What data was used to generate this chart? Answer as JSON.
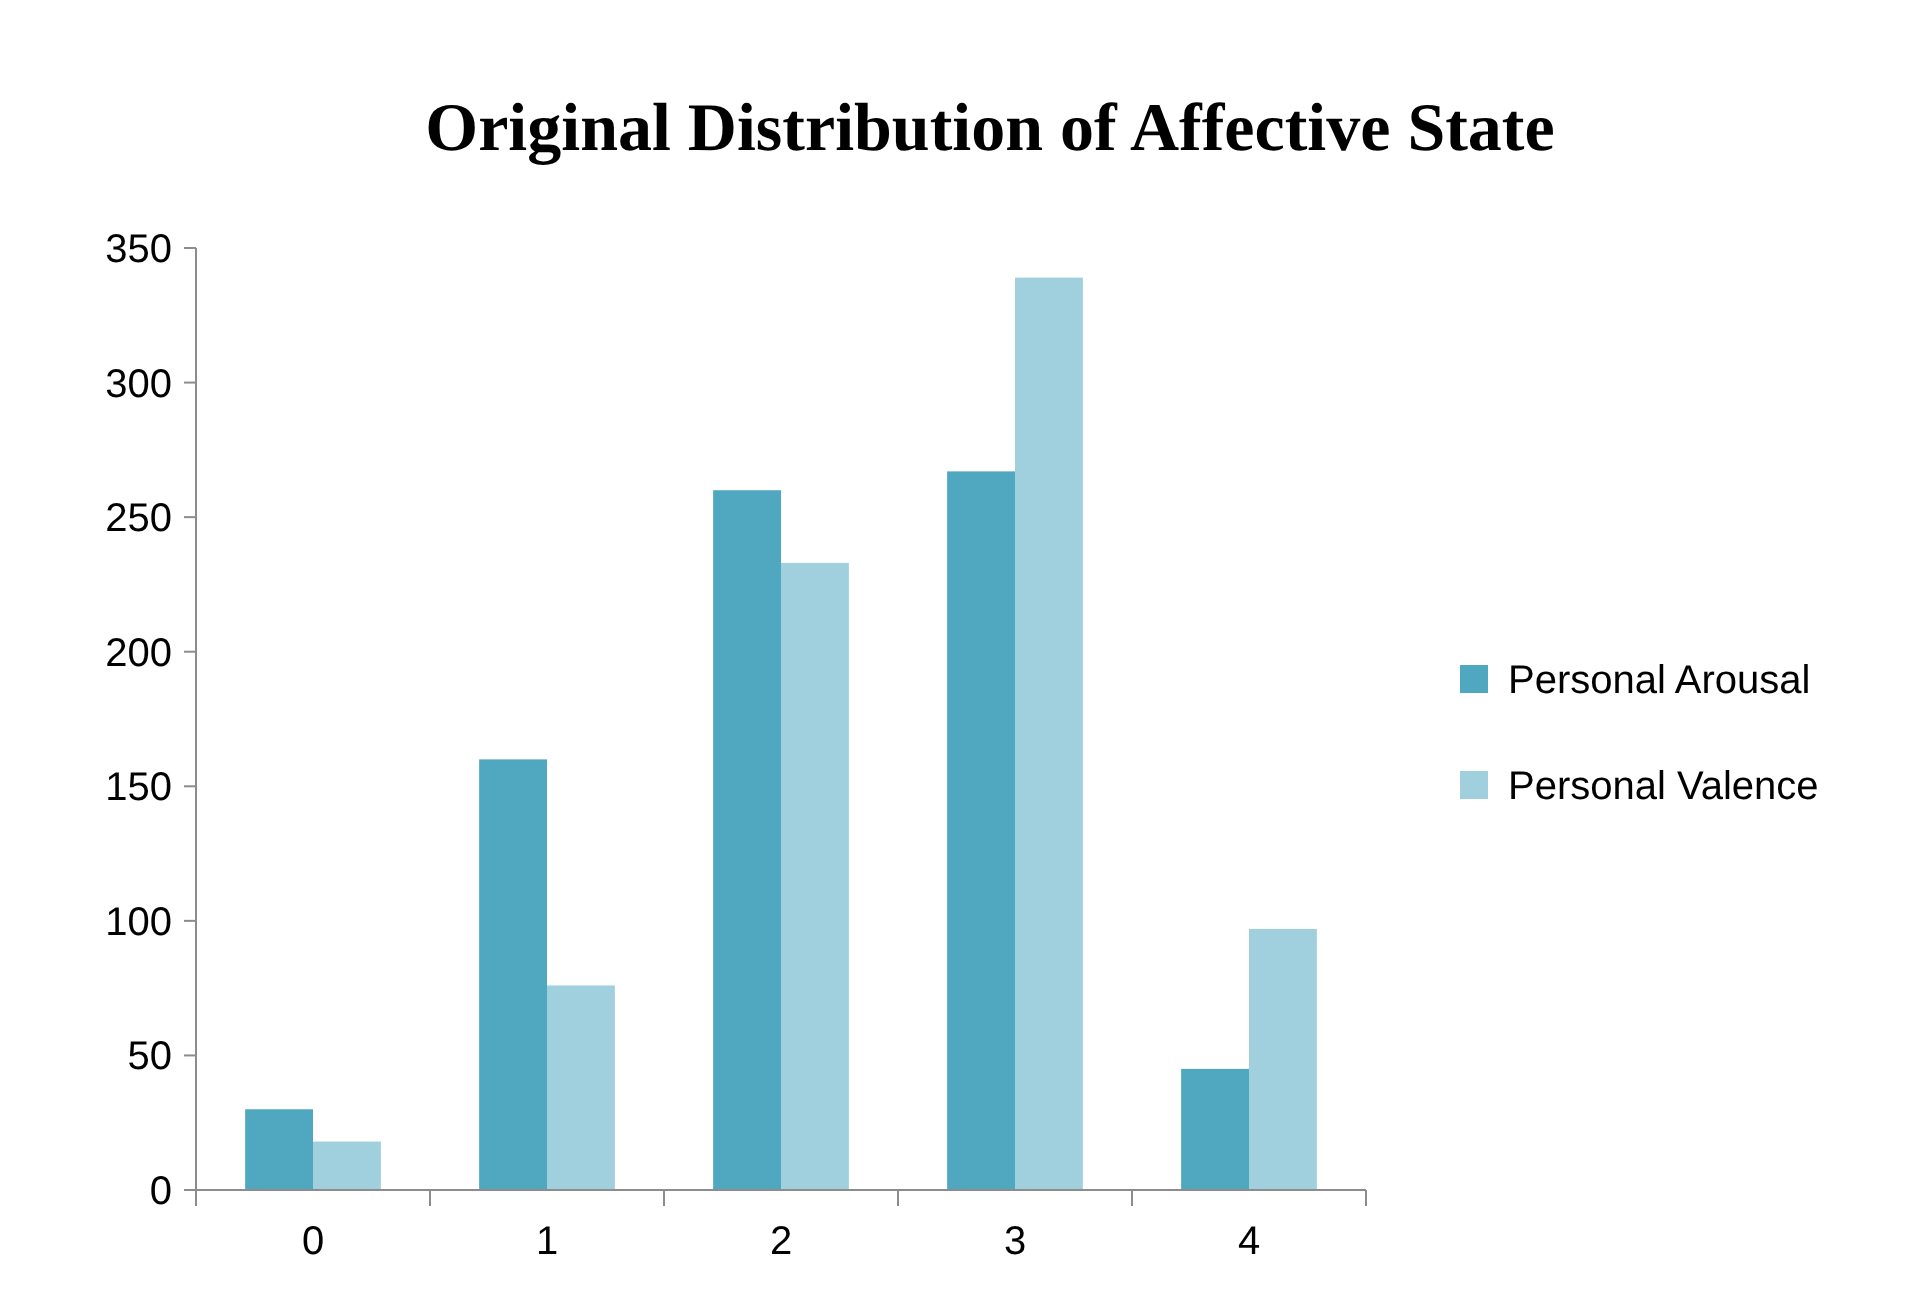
{
  "chart_data": {
    "type": "bar",
    "title": "Original Distribution of Affective State",
    "categories": [
      "0",
      "1",
      "2",
      "3",
      "4"
    ],
    "series": [
      {
        "name": "Personal Arousal",
        "color": "#4fa8c0",
        "values": [
          30,
          160,
          260,
          267,
          45
        ]
      },
      {
        "name": "Personal Valence",
        "color": "#a0cfdd",
        "values": [
          18,
          76,
          233,
          339,
          97
        ]
      }
    ],
    "ylim": [
      0,
      350
    ],
    "yticks": [
      0,
      50,
      100,
      150,
      200,
      250,
      300,
      350
    ],
    "grid": false,
    "legend": "right"
  }
}
